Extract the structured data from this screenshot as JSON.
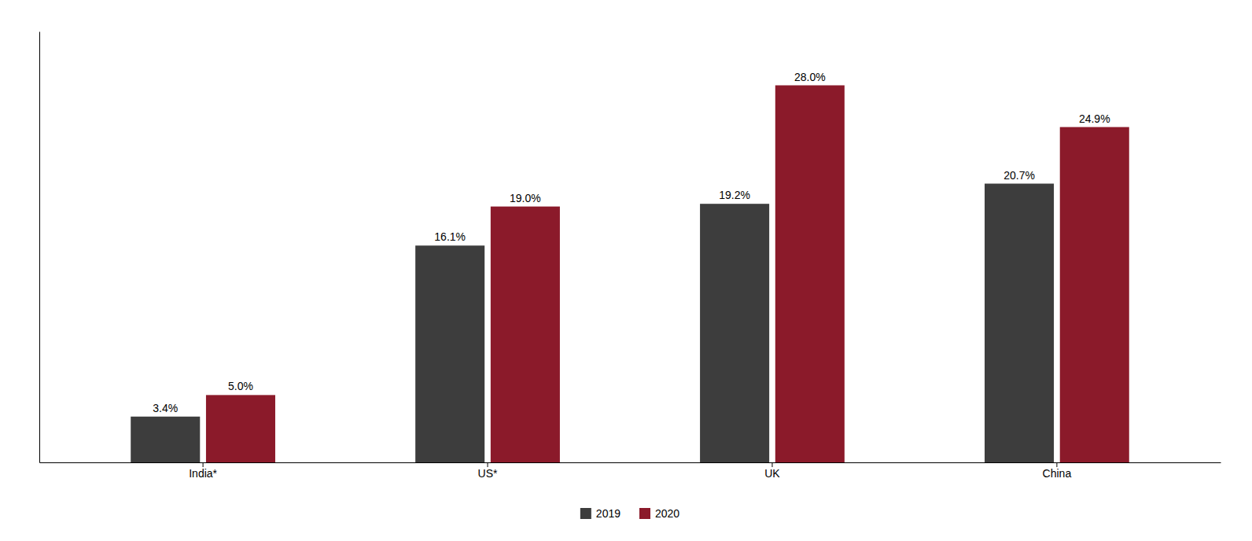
{
  "chart_data": {
    "type": "bar",
    "categories": [
      "India*",
      "US*",
      "UK",
      "China"
    ],
    "series": [
      {
        "name": "2019",
        "color": "#3d3d3d",
        "values": [
          3.4,
          16.1,
          19.2,
          20.7
        ],
        "value_labels": [
          "3.4%",
          "16.1%",
          "19.2%",
          "20.7%"
        ]
      },
      {
        "name": "2020",
        "color": "#8B1A2A",
        "values": [
          5.0,
          19.0,
          28.0,
          24.9
        ],
        "value_labels": [
          "5.0%",
          "19.0%",
          "28.0%",
          "24.9%"
        ]
      }
    ],
    "ylim": [
      0,
      32
    ],
    "data_labels": true,
    "tick_labels": "x",
    "legend": "bottom"
  }
}
